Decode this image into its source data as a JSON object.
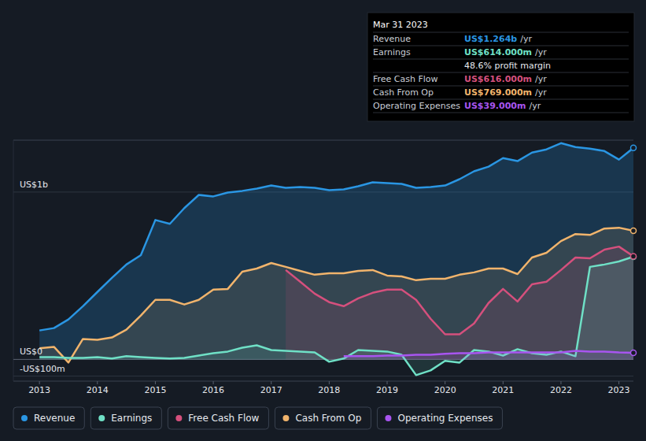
{
  "chart_data": {
    "type": "area",
    "x": [
      2013,
      2013.25,
      2013.5,
      2013.75,
      2014,
      2014.25,
      2014.5,
      2014.75,
      2015,
      2015.25,
      2015.5,
      2015.75,
      2016,
      2016.25,
      2016.5,
      2016.75,
      2017,
      2017.25,
      2017.5,
      2017.75,
      2018,
      2018.25,
      2018.5,
      2018.75,
      2019,
      2019.25,
      2019.5,
      2019.75,
      2020,
      2020.25,
      2020.5,
      2020.75,
      2021,
      2021.25,
      2021.5,
      2021.75,
      2022,
      2022.25,
      2022.5,
      2022.75,
      2023,
      2023.25
    ],
    "xlim": [
      2012.55,
      2023.25
    ],
    "xticks": [
      2013,
      2014,
      2015,
      2016,
      2017,
      2018,
      2019,
      2020,
      2021,
      2022,
      2023
    ],
    "ylim": [
      -130,
      1310
    ],
    "yticks": [
      {
        "value": -100,
        "label": "-US$100m"
      },
      {
        "value": 0,
        "label": "US$0"
      },
      {
        "value": 1000,
        "label": "US$1b"
      }
    ],
    "grid": true,
    "legend": "bottom",
    "series": [
      {
        "name": "Revenue",
        "color": "#2a96e3",
        "values": [
          173,
          187,
          239,
          318,
          403,
          487,
          567,
          623,
          833,
          810,
          904,
          983,
          974,
          997,
          1007,
          1021,
          1039,
          1025,
          1030,
          1025,
          1011,
          1016,
          1035,
          1058,
          1053,
          1049,
          1025,
          1030,
          1039,
          1077,
          1124,
          1152,
          1203,
          1185,
          1236,
          1255,
          1292,
          1269,
          1259,
          1245,
          1194,
          1264
        ]
      },
      {
        "name": "Earnings",
        "color": "#6fe0c6",
        "values": [
          14,
          14,
          9,
          9,
          14,
          5,
          19,
          14,
          9,
          5,
          9,
          23,
          37,
          47,
          70,
          84,
          56,
          51,
          47,
          42,
          -14,
          5,
          56,
          51,
          47,
          28,
          -94,
          -66,
          -9,
          -19,
          56,
          47,
          23,
          61,
          37,
          28,
          47,
          19,
          553,
          567,
          585,
          614
        ]
      },
      {
        "name": "Free Cash Flow",
        "color": "#d5507d",
        "values": [
          null,
          null,
          null,
          null,
          null,
          null,
          null,
          null,
          null,
          null,
          null,
          null,
          null,
          null,
          null,
          null,
          null,
          534,
          464,
          393,
          342,
          318,
          365,
          398,
          417,
          417,
          356,
          243,
          150,
          150,
          215,
          337,
          421,
          346,
          449,
          464,
          534,
          609,
          604,
          656,
          674,
          616
        ]
      },
      {
        "name": "Cash From Op",
        "color": "#f1b46c",
        "values": [
          66,
          75,
          -19,
          122,
          117,
          131,
          178,
          262,
          356,
          356,
          328,
          356,
          417,
          421,
          524,
          543,
          576,
          553,
          529,
          506,
          515,
          515,
          529,
          534,
          501,
          496,
          473,
          482,
          482,
          506,
          520,
          543,
          543,
          510,
          609,
          637,
          707,
          749,
          744,
          782,
          787,
          769
        ]
      },
      {
        "name": "Operating Expenses",
        "color": "#a855f0",
        "values": [
          null,
          null,
          null,
          null,
          null,
          null,
          null,
          null,
          null,
          null,
          null,
          null,
          null,
          null,
          null,
          null,
          null,
          null,
          null,
          null,
          null,
          19,
          19,
          19,
          23,
          23,
          28,
          28,
          33,
          37,
          37,
          42,
          42,
          42,
          42,
          42,
          42,
          51,
          47,
          47,
          42,
          39
        ]
      }
    ],
    "tooltip": {
      "title": "Mar 31 2023",
      "rows": [
        {
          "label": "Revenue",
          "value": "US$1.264b",
          "unit": "/yr"
        },
        {
          "label": "Earnings",
          "value": "US$614.000m",
          "unit": "/yr"
        },
        {
          "label": "Free Cash Flow",
          "value": "US$616.000m",
          "unit": "/yr"
        },
        {
          "label": "Cash From Op",
          "value": "US$769.000m",
          "unit": "/yr"
        },
        {
          "label": "Operating Expenses",
          "value": "US$39.000m",
          "unit": "/yr"
        }
      ],
      "profit_margin": "48.6% profit margin"
    }
  }
}
